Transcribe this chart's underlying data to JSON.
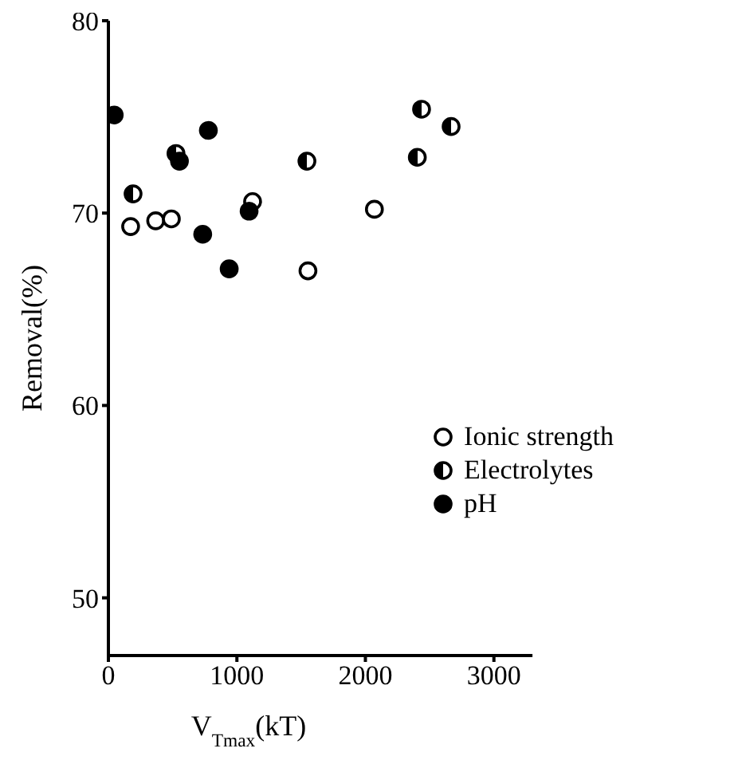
{
  "chart_data": {
    "type": "scatter",
    "xlabel": "V$_{Tmax}$(kT)",
    "ylabel": "Removal(%)",
    "xlim": [
      0,
      3300
    ],
    "xticks": [
      0,
      1000,
      2000,
      3000
    ],
    "ylim": [
      47,
      80
    ],
    "yticks": [
      50,
      60,
      70,
      80
    ],
    "grid": false,
    "legend": "right",
    "marker": "circle",
    "series": [
      {
        "name": "Ionic strength",
        "color": "#000000",
        "x": [
          173,
          368,
          490,
          1122,
          2070,
          1553
        ],
        "values": [
          69.3,
          69.6,
          69.7,
          70.6,
          70.2,
          67.0
        ]
      },
      {
        "name": "Electrolytes",
        "color": "#000000",
        "x": [
          192,
          526,
          1545,
          2437,
          2667,
          2404
        ],
        "values": [
          71.0,
          73.1,
          72.7,
          75.4,
          74.5,
          72.9
        ]
      },
      {
        "name": "pH",
        "color": "#000000",
        "x": [
          45,
          778,
          553,
          734,
          940,
          1095
        ],
        "values": [
          75.1,
          74.3,
          72.7,
          68.9,
          67.1,
          70.1
        ]
      }
    ]
  }
}
